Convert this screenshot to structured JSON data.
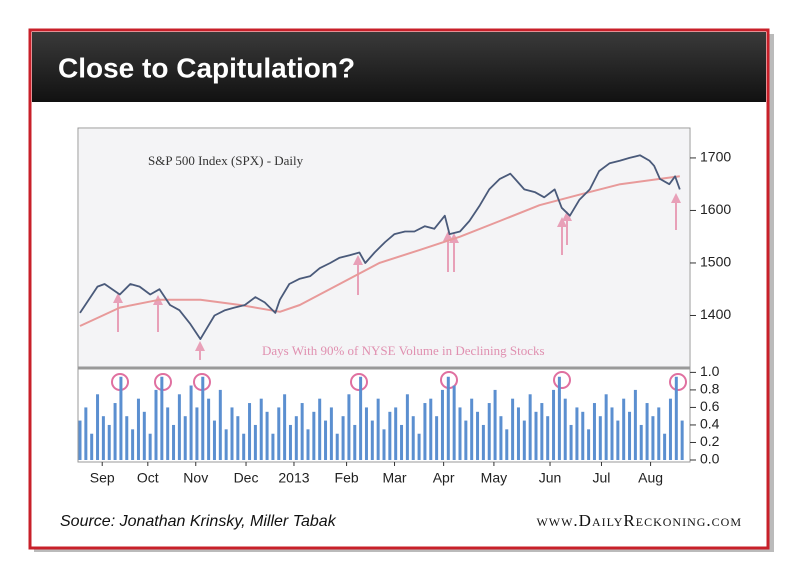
{
  "chart_data": {
    "type": "line",
    "title": "Close to Capitulation?",
    "annotations": [
      "S&P 500 Index (SPX) - Daily",
      "Days With 90% of NYSE Volume in Declining Stocks"
    ],
    "source": "Source: Jonathan Krinsky, Miller Tabak",
    "website": "www.DailyReckoning.com",
    "xlim": [
      0,
      52
    ],
    "xticks": [
      {
        "value": 1.9,
        "label": "Sep"
      },
      {
        "value": 5.8,
        "label": "Oct"
      },
      {
        "value": 9.9,
        "label": "Nov"
      },
      {
        "value": 14.2,
        "label": "Dec"
      },
      {
        "value": 18.3,
        "label": "2013"
      },
      {
        "value": 22.8,
        "label": "Feb"
      },
      {
        "value": 26.9,
        "label": "Mar"
      },
      {
        "value": 31.1,
        "label": "Apr"
      },
      {
        "value": 35.4,
        "label": "May"
      },
      {
        "value": 40.2,
        "label": "Jun"
      },
      {
        "value": 44.6,
        "label": "Jul"
      },
      {
        "value": 48.8,
        "label": "Aug"
      }
    ],
    "ylim": [
      1300,
      1757
    ],
    "yticks": [
      1400,
      1500,
      1600,
      1700
    ],
    "price": {
      "color": "#4a5a7a",
      "x": [
        0,
        1.5,
        2.1,
        3.4,
        4.3,
        5.1,
        6.0,
        6.8,
        7.7,
        8.5,
        9.4,
        10.3,
        10.7,
        11.5,
        12.4,
        13.2,
        14.1,
        15.0,
        15.8,
        16.7,
        17.1,
        17.9,
        18.8,
        19.7,
        20.5,
        21.4,
        22.2,
        23.1,
        23.9,
        24.4,
        25.2,
        26.1,
        26.9,
        27.8,
        28.6,
        29.5,
        30.3,
        31.2,
        31.6,
        32.5,
        33.3,
        34.2,
        35.0,
        35.9,
        36.8,
        37.2,
        38.0,
        38.9,
        39.7,
        40.6,
        41.2,
        41.9,
        42.7,
        43.6,
        44.4,
        45.3,
        46.2,
        47.0,
        47.9,
        48.7,
        49.1,
        49.6,
        50.4,
        50.9,
        51.3
      ],
      "values": [
        1405,
        1455,
        1460,
        1440,
        1460,
        1455,
        1440,
        1450,
        1420,
        1410,
        1385,
        1355,
        1370,
        1400,
        1410,
        1415,
        1420,
        1435,
        1425,
        1405,
        1430,
        1460,
        1470,
        1475,
        1490,
        1500,
        1510,
        1515,
        1520,
        1500,
        1520,
        1540,
        1555,
        1560,
        1560,
        1570,
        1565,
        1590,
        1555,
        1560,
        1580,
        1610,
        1640,
        1660,
        1670,
        1660,
        1640,
        1635,
        1625,
        1640,
        1605,
        1590,
        1620,
        1640,
        1675,
        1690,
        1695,
        1700,
        1705,
        1695,
        1685,
        1660,
        1650,
        1665,
        1640
      ]
    },
    "moving_average": {
      "color": "#e89a9a",
      "x": [
        0,
        3.4,
        6.8,
        10.3,
        13.7,
        17.1,
        18.8,
        22.2,
        25.6,
        29.1,
        32.5,
        35.9,
        39.3,
        42.7,
        46.2,
        49.6,
        51.3
      ],
      "values": [
        1380,
        1415,
        1430,
        1430,
        1420,
        1407,
        1420,
        1460,
        1500,
        1525,
        1550,
        1580,
        1610,
        1630,
        1650,
        1660,
        1665
      ]
    },
    "volume": {
      "color": "#5b8fd0",
      "ylim": [
        0,
        1.05
      ],
      "yticks": [
        {
          "value": 0,
          "label": "0.0"
        },
        0.2,
        0.4,
        0.6,
        0.8,
        {
          "value": 1,
          "label": "1.0"
        }
      ],
      "x": [
        0,
        0.5,
        1,
        1.5,
        2,
        2.5,
        3,
        3.5,
        4,
        4.5,
        5,
        5.5,
        6,
        6.5,
        7,
        7.5,
        8,
        8.5,
        9,
        9.5,
        10,
        10.5,
        11,
        11.5,
        12,
        12.5,
        13,
        13.5,
        14,
        14.5,
        15,
        15.5,
        16,
        16.5,
        17,
        17.5,
        18,
        18.5,
        19,
        19.5,
        20,
        20.5,
        21,
        21.5,
        22,
        22.5,
        23,
        23.5,
        24,
        24.5,
        25,
        25.5,
        26,
        26.5,
        27,
        27.5,
        28,
        28.5,
        29,
        29.5,
        30,
        30.5,
        31,
        31.5,
        32,
        32.5,
        33,
        33.5,
        34,
        34.5,
        35,
        35.5,
        36,
        36.5,
        37,
        37.5,
        38,
        38.5,
        39,
        39.5,
        40,
        40.5,
        41,
        41.5,
        42,
        42.5,
        43,
        43.5,
        44,
        44.5,
        45,
        45.5,
        46,
        46.5,
        47,
        47.5,
        48,
        48.5,
        49,
        49.5,
        50,
        50.5,
        51,
        51.5
      ],
      "values": [
        0.45,
        0.6,
        0.3,
        0.75,
        0.5,
        0.4,
        0.65,
        0.95,
        0.5,
        0.35,
        0.7,
        0.55,
        0.3,
        0.8,
        0.95,
        0.6,
        0.4,
        0.75,
        0.5,
        0.85,
        0.6,
        0.95,
        0.7,
        0.45,
        0.8,
        0.35,
        0.6,
        0.5,
        0.3,
        0.65,
        0.4,
        0.7,
        0.55,
        0.3,
        0.6,
        0.75,
        0.4,
        0.5,
        0.65,
        0.35,
        0.55,
        0.7,
        0.45,
        0.6,
        0.3,
        0.5,
        0.75,
        0.4,
        0.95,
        0.6,
        0.45,
        0.7,
        0.35,
        0.55,
        0.6,
        0.4,
        0.75,
        0.5,
        0.3,
        0.65,
        0.7,
        0.5,
        0.8,
        0.95,
        0.85,
        0.6,
        0.45,
        0.7,
        0.55,
        0.4,
        0.65,
        0.8,
        0.5,
        0.35,
        0.7,
        0.6,
        0.45,
        0.75,
        0.55,
        0.65,
        0.5,
        0.8,
        0.95,
        0.7,
        0.4,
        0.6,
        0.55,
        0.35,
        0.65,
        0.5,
        0.75,
        0.6,
        0.45,
        0.7,
        0.55,
        0.8,
        0.4,
        0.65,
        0.5,
        0.6,
        0.3,
        0.7,
        0.95,
        0.45
      ]
    }
  }
}
